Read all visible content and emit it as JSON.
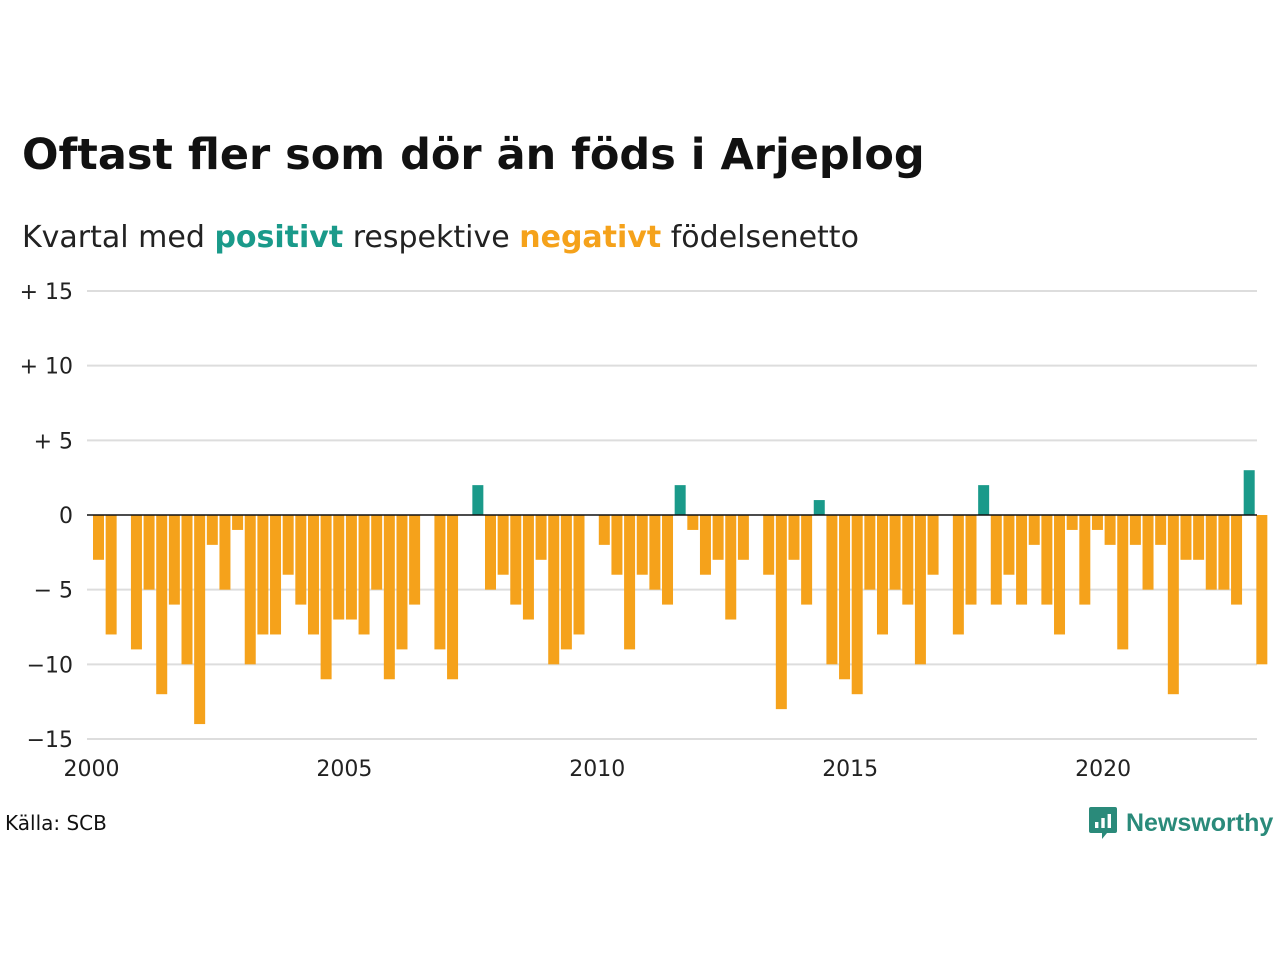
{
  "title": "Oftast fler som dör än föds i Arjeplog",
  "subtitle": {
    "prefix": "Kvartal med",
    "positive_word": "positivt",
    "middle": "respektive",
    "negative_word": "negativt",
    "suffix": "födelsenetto"
  },
  "source": "Källa: SCB",
  "brand": "Newsworthy",
  "colors": {
    "positive": "#1a9a8a",
    "negative": "#f5a21b",
    "grid": "#dddddd",
    "brand": "#2a8a7a"
  },
  "chart_data": {
    "type": "bar",
    "grid": true,
    "ylim": [
      -15,
      15
    ],
    "yticks": [
      {
        "value": 15,
        "label": "+ 15"
      },
      {
        "value": 10,
        "label": "+ 10"
      },
      {
        "value": 5,
        "label": "+  5"
      },
      {
        "value": 0,
        "label": "0"
      },
      {
        "value": -5,
        "label": "− 5"
      },
      {
        "value": -10,
        "label": "−10"
      },
      {
        "value": -15,
        "label": "−15"
      }
    ],
    "xticks": [
      "2000",
      "2005",
      "2010",
      "2015",
      "2020"
    ],
    "start": "2000 Q1",
    "frequency": "quarter",
    "values": [
      -3,
      -8,
      0,
      -9,
      -5,
      -12,
      -6,
      -10,
      -14,
      -2,
      -5,
      -1,
      -10,
      -8,
      -8,
      -4,
      -6,
      -8,
      -11,
      -7,
      -7,
      -8,
      -5,
      -11,
      -9,
      -6,
      0,
      -9,
      -11,
      0,
      2,
      -5,
      -4,
      -6,
      -7,
      -3,
      -10,
      -9,
      -8,
      0,
      -2,
      -4,
      -9,
      -4,
      -5,
      -6,
      2,
      -1,
      -4,
      -3,
      -7,
      -3,
      0,
      -4,
      -13,
      -3,
      -6,
      1,
      -10,
      -11,
      -12,
      -5,
      -8,
      -5,
      -6,
      -10,
      -4,
      0,
      -8,
      -6,
      2,
      -6,
      -4,
      -6,
      -2,
      -6,
      -8,
      -1,
      -6,
      -1,
      -2,
      -9,
      -2,
      -5,
      -2,
      -12,
      -3,
      -3,
      -5,
      -5,
      -6,
      3,
      -10
    ]
  }
}
